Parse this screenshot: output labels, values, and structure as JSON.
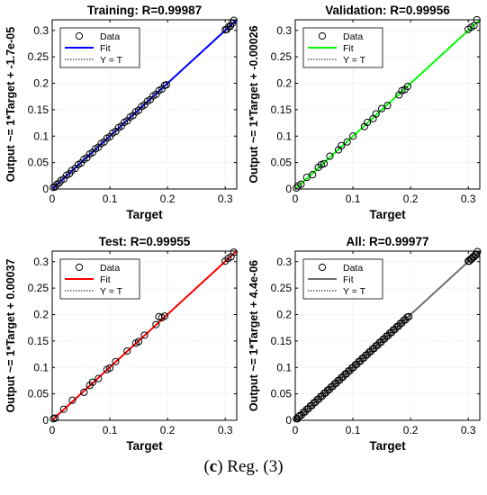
{
  "caption": {
    "letter": "c",
    "text": " Reg. (3)"
  },
  "marker_color": "#000000",
  "identity_color": "#000000",
  "chart_data": [
    {
      "type": "scatter",
      "title": "Training: R=0.99987",
      "xlabel": "Target",
      "ylabel": "Output ~= 1*Target + -1.7e-05",
      "xlim": [
        0,
        0.32
      ],
      "ylim": [
        0,
        0.32
      ],
      "xticks": [
        "0",
        "0.1",
        "0.2",
        "0.3"
      ],
      "yticks": [
        "0",
        "0.05",
        "0.1",
        "0.15",
        "0.2",
        "0.25",
        "0.3"
      ],
      "fit_color": "#0000ff",
      "legend": [
        "Data",
        "Fit",
        "Y = T"
      ],
      "legend_position": "top-left",
      "fit": {
        "slope": 1,
        "intercept": -1.7e-05
      },
      "x": [
        0.002,
        0.005,
        0.008,
        0.012,
        0.015,
        0.02,
        0.025,
        0.03,
        0.034,
        0.04,
        0.045,
        0.05,
        0.055,
        0.06,
        0.065,
        0.07,
        0.075,
        0.08,
        0.085,
        0.09,
        0.095,
        0.1,
        0.105,
        0.11,
        0.115,
        0.12,
        0.125,
        0.13,
        0.135,
        0.14,
        0.145,
        0.15,
        0.155,
        0.16,
        0.165,
        0.17,
        0.175,
        0.18,
        0.185,
        0.19,
        0.195,
        0.198,
        0.3,
        0.303,
        0.306,
        0.309,
        0.312,
        0.315
      ],
      "y": [
        0.003,
        0.004,
        0.009,
        0.011,
        0.016,
        0.019,
        0.026,
        0.029,
        0.035,
        0.039,
        0.046,
        0.049,
        0.056,
        0.059,
        0.066,
        0.069,
        0.076,
        0.079,
        0.086,
        0.089,
        0.096,
        0.099,
        0.106,
        0.109,
        0.116,
        0.119,
        0.126,
        0.129,
        0.136,
        0.139,
        0.146,
        0.149,
        0.156,
        0.159,
        0.166,
        0.169,
        0.176,
        0.179,
        0.186,
        0.189,
        0.196,
        0.197,
        0.301,
        0.302,
        0.307,
        0.308,
        0.313,
        0.319
      ]
    },
    {
      "type": "scatter",
      "title": "Validation: R=0.99956",
      "xlabel": "Target",
      "ylabel": "Output ~= 1*Target + -0.00026",
      "xlim": [
        0,
        0.32
      ],
      "ylim": [
        0,
        0.32
      ],
      "xticks": [
        "0",
        "0.1",
        "0.2",
        "0.3"
      ],
      "yticks": [
        "0",
        "0.05",
        "0.1",
        "0.15",
        "0.2",
        "0.25",
        "0.3"
      ],
      "fit_color": "#00ff00",
      "legend": [
        "Data",
        "Fit",
        "Y = T"
      ],
      "legend_position": "top-left",
      "fit": {
        "slope": 1,
        "intercept": -0.00026
      },
      "x": [
        0.002,
        0.005,
        0.01,
        0.02,
        0.03,
        0.04,
        0.045,
        0.05,
        0.06,
        0.075,
        0.08,
        0.09,
        0.1,
        0.12,
        0.125,
        0.135,
        0.14,
        0.15,
        0.16,
        0.18,
        0.185,
        0.19,
        0.195,
        0.3,
        0.305,
        0.31,
        0.315
      ],
      "y": [
        0.002,
        0.006,
        0.009,
        0.022,
        0.027,
        0.041,
        0.046,
        0.048,
        0.062,
        0.074,
        0.082,
        0.089,
        0.1,
        0.118,
        0.126,
        0.133,
        0.142,
        0.152,
        0.158,
        0.178,
        0.186,
        0.188,
        0.194,
        0.302,
        0.306,
        0.309,
        0.32
      ]
    },
    {
      "type": "scatter",
      "title": "Test: R=0.99955",
      "xlabel": "Target",
      "ylabel": "Output ~= 1*Target + 0.00037",
      "xlim": [
        0,
        0.32
      ],
      "ylim": [
        0,
        0.32
      ],
      "xticks": [
        "0",
        "0.1",
        "0.2",
        "0.3"
      ],
      "yticks": [
        "0",
        "0.05",
        "0.1",
        "0.15",
        "0.2",
        "0.25",
        "0.3"
      ],
      "fit_color": "#ff0000",
      "legend": [
        "Data",
        "Fit",
        "Y = T"
      ],
      "legend_position": "top-left",
      "fit": {
        "slope": 1,
        "intercept": 0.00037
      },
      "x": [
        0.002,
        0.005,
        0.02,
        0.035,
        0.055,
        0.065,
        0.07,
        0.08,
        0.095,
        0.1,
        0.11,
        0.13,
        0.145,
        0.15,
        0.16,
        0.18,
        0.185,
        0.19,
        0.195,
        0.3,
        0.305,
        0.31,
        0.315
      ],
      "y": [
        0.003,
        0.004,
        0.021,
        0.038,
        0.053,
        0.066,
        0.072,
        0.079,
        0.096,
        0.099,
        0.111,
        0.131,
        0.146,
        0.149,
        0.161,
        0.181,
        0.196,
        0.194,
        0.197,
        0.301,
        0.306,
        0.309,
        0.318
      ]
    },
    {
      "type": "scatter",
      "title": "All: R=0.99977",
      "xlabel": "Target",
      "ylabel": "Output ~= 1*Target + 4.4e-06",
      "xlim": [
        0,
        0.32
      ],
      "ylim": [
        0,
        0.32
      ],
      "xticks": [
        "0",
        "0.1",
        "0.2",
        "0.3"
      ],
      "yticks": [
        "0",
        "0.05",
        "0.1",
        "0.15",
        "0.2",
        "0.25",
        "0.3"
      ],
      "fit_color": "#707070",
      "legend": [
        "Data",
        "Fit",
        "Y = T"
      ],
      "legend_position": "top-left",
      "fit": {
        "slope": 1,
        "intercept": 4.4e-06
      },
      "x": [
        0.002,
        0.004,
        0.006,
        0.008,
        0.011,
        0.014,
        0.017,
        0.02,
        0.023,
        0.026,
        0.029,
        0.032,
        0.035,
        0.038,
        0.041,
        0.044,
        0.047,
        0.05,
        0.053,
        0.056,
        0.059,
        0.062,
        0.065,
        0.068,
        0.071,
        0.074,
        0.077,
        0.08,
        0.083,
        0.086,
        0.089,
        0.092,
        0.095,
        0.098,
        0.101,
        0.104,
        0.107,
        0.11,
        0.113,
        0.116,
        0.119,
        0.122,
        0.125,
        0.128,
        0.131,
        0.134,
        0.137,
        0.14,
        0.143,
        0.146,
        0.149,
        0.152,
        0.155,
        0.158,
        0.161,
        0.164,
        0.167,
        0.17,
        0.173,
        0.176,
        0.179,
        0.182,
        0.185,
        0.188,
        0.191,
        0.194,
        0.197,
        0.3,
        0.302,
        0.304,
        0.306,
        0.308,
        0.31,
        0.312,
        0.314,
        0.316
      ],
      "y": [
        0.003,
        0.003,
        0.007,
        0.009,
        0.01,
        0.015,
        0.016,
        0.021,
        0.022,
        0.027,
        0.028,
        0.033,
        0.034,
        0.039,
        0.04,
        0.045,
        0.046,
        0.051,
        0.052,
        0.057,
        0.058,
        0.063,
        0.064,
        0.069,
        0.07,
        0.075,
        0.076,
        0.081,
        0.082,
        0.087,
        0.088,
        0.093,
        0.094,
        0.099,
        0.1,
        0.105,
        0.106,
        0.111,
        0.112,
        0.117,
        0.118,
        0.123,
        0.124,
        0.129,
        0.13,
        0.135,
        0.136,
        0.141,
        0.142,
        0.147,
        0.148,
        0.153,
        0.154,
        0.159,
        0.16,
        0.165,
        0.166,
        0.171,
        0.172,
        0.177,
        0.178,
        0.183,
        0.184,
        0.189,
        0.19,
        0.195,
        0.196,
        0.301,
        0.301,
        0.305,
        0.305,
        0.309,
        0.309,
        0.313,
        0.313,
        0.319
      ]
    }
  ]
}
